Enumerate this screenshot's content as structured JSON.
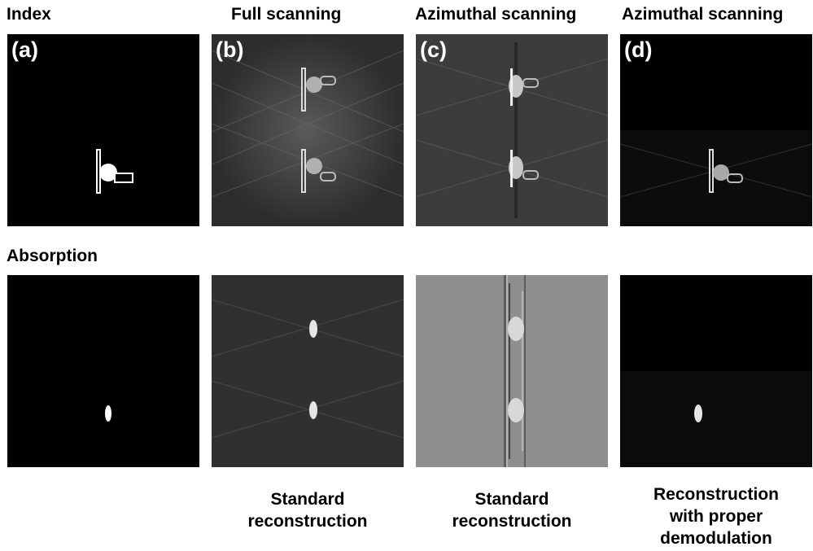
{
  "column_titles": {
    "index": "Index",
    "full": "Full scanning",
    "az1": "Azimuthal scanning",
    "az2": "Azimuthal scanning"
  },
  "row_titles": {
    "absorption": "Absorption"
  },
  "panel_labels": {
    "a": "(a)",
    "b": "(b)",
    "c": "(c)",
    "d": "(d)"
  },
  "captions": {
    "b": [
      "Standard",
      "reconstruction"
    ],
    "c": [
      "Standard",
      "reconstruction"
    ],
    "d": [
      "Reconstruction",
      "with proper",
      "demodulation"
    ]
  }
}
